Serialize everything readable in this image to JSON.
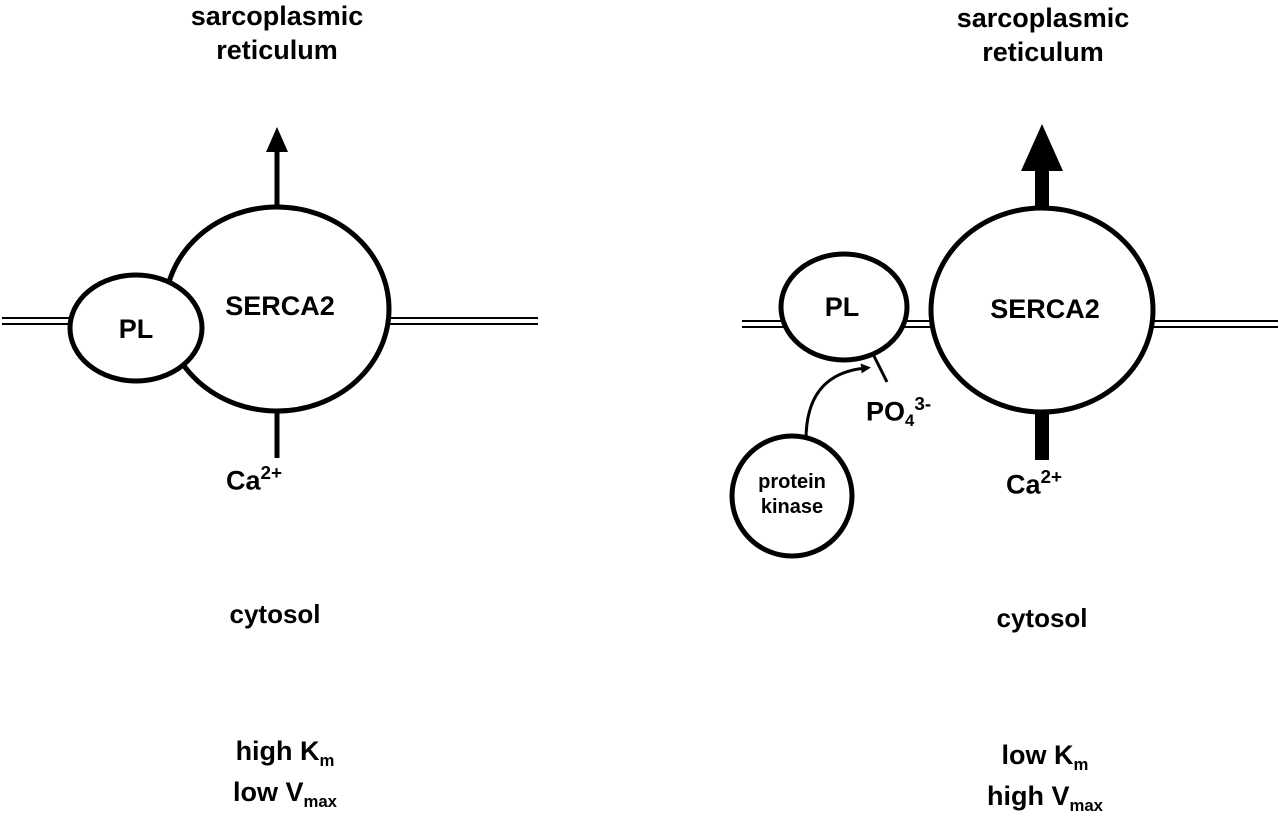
{
  "panels": [
    {
      "id": "left",
      "top_label_line1": "sarcoplasmic",
      "top_label_line2": "reticulum",
      "pump_label": "SERCA2",
      "regulator_label": "PL",
      "ion_label": "Ca",
      "ion_charge": "2+",
      "compartment_label": "cytosol",
      "km_prefix": "high K",
      "km_sub": "m",
      "vmax_prefix": "low V",
      "vmax_sub": "max"
    },
    {
      "id": "right",
      "top_label_line1": "sarcoplasmic",
      "top_label_line2": "reticulum",
      "pump_label": "SERCA2",
      "regulator_label": "PL",
      "ion_label": "Ca",
      "ion_charge": "2+",
      "compartment_label": "cytosol",
      "phosphate_label": "PO",
      "phosphate_sub": "4",
      "phosphate_charge": "3-",
      "kinase_line1": "protein",
      "kinase_line2": "kinase",
      "km_prefix": "low K",
      "km_sub": "m",
      "vmax_prefix": "high V",
      "vmax_sub": "max"
    }
  ]
}
